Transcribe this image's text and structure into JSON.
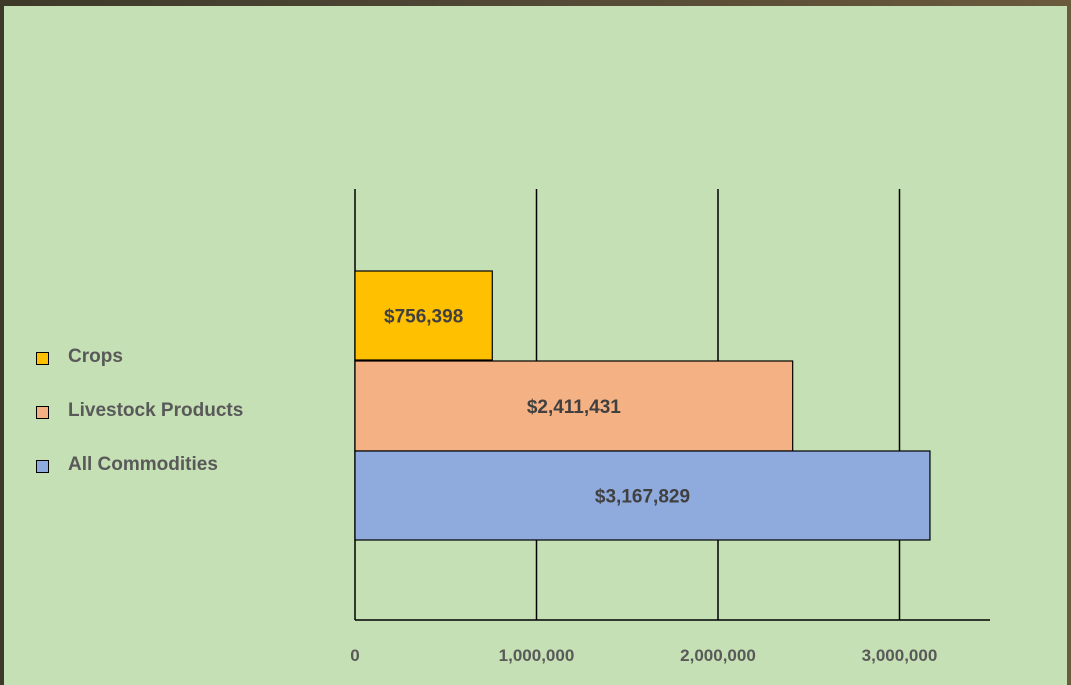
{
  "chart_data": {
    "type": "bar",
    "orientation": "horizontal",
    "title": "",
    "xlabel": "",
    "ylabel": "",
    "xlim": [
      0,
      3500000
    ],
    "x_ticks": [
      0,
      1000000,
      2000000,
      3000000
    ],
    "x_tick_labels": [
      "0",
      "1,000,000",
      "2,000,000",
      "3,000,000"
    ],
    "grid": "vertical",
    "legend_position": "left",
    "bars": [
      {
        "name": "Crops",
        "value": 756398,
        "label": "$756,398",
        "color": "#ffc000"
      },
      {
        "name": "Livestock Products",
        "value": 2411431,
        "label": "$2,411,431",
        "color": "#f4b183"
      },
      {
        "name": "All Commodities",
        "value": 3167829,
        "label": "$3,167,829",
        "color": "#8faadc"
      }
    ]
  }
}
